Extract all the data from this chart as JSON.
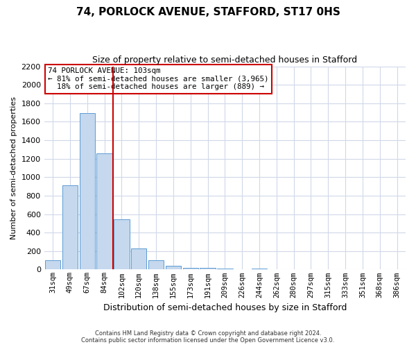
{
  "title": "74, PORLOCK AVENUE, STAFFORD, ST17 0HS",
  "subtitle": "Size of property relative to semi-detached houses in Stafford",
  "xlabel": "Distribution of semi-detached houses by size in Stafford",
  "ylabel": "Number of semi-detached properties",
  "bin_labels": [
    "31sqm",
    "49sqm",
    "67sqm",
    "84sqm",
    "102sqm",
    "120sqm",
    "138sqm",
    "155sqm",
    "173sqm",
    "191sqm",
    "209sqm",
    "226sqm",
    "244sqm",
    "262sqm",
    "280sqm",
    "297sqm",
    "315sqm",
    "333sqm",
    "351sqm",
    "368sqm",
    "386sqm"
  ],
  "bar_values": [
    97,
    912,
    1697,
    1258,
    542,
    232,
    103,
    40,
    20,
    15,
    12,
    0,
    12,
    0,
    0,
    0,
    0,
    0,
    0,
    0,
    0
  ],
  "bar_color": "#c5d8ed",
  "bar_edge_color": "#5b9bd5",
  "property_sqm": 103,
  "pct_smaller": 81,
  "count_smaller": 3965,
  "pct_larger": 18,
  "count_larger": 889,
  "annotation_box_color": "#ffffff",
  "annotation_box_edge": "#cc0000",
  "vertical_line_color": "#cc0000",
  "grid_color": "#d0d8e8",
  "bg_color": "#ffffff",
  "ylim_max": 2200,
  "yticks": [
    0,
    200,
    400,
    600,
    800,
    1000,
    1200,
    1400,
    1600,
    1800,
    2000,
    2200
  ],
  "footer_line1": "Contains HM Land Registry data © Crown copyright and database right 2024.",
  "footer_line2": "Contains public sector information licensed under the Open Government Licence v3.0."
}
